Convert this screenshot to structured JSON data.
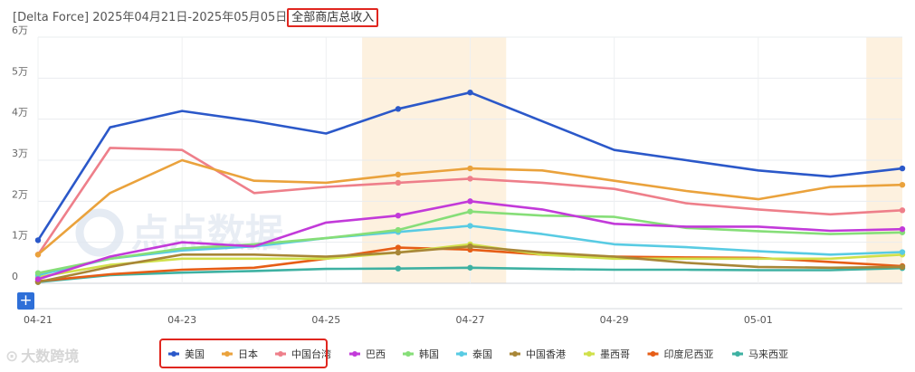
{
  "header": {
    "title_prefix": "[Delta Force] 2025年04月21日-2025年05月05日",
    "title_highlight": "全部商店总收入"
  },
  "toolbar": {
    "expand_icon": "plus-icon"
  },
  "watermark": {
    "text": "点点数据"
  },
  "corner_logo": {
    "text": "大数跨境"
  },
  "colors": {
    "highlight_band": "#fdf1df",
    "annotation_border": "#e0261f"
  },
  "chart_data": {
    "type": "line",
    "title": "全部商店总收入",
    "x": [
      "04-21",
      "04-22",
      "04-23",
      "04-24",
      "04-25",
      "04-26",
      "04-27",
      "04-28",
      "04-29",
      "04-30",
      "05-01",
      "05-02",
      "05-03"
    ],
    "x_tick_labels": [
      "04-21",
      "04-23",
      "04-25",
      "04-27",
      "04-29",
      "05-01"
    ],
    "ylim": [
      0,
      60000
    ],
    "y_ticks": [
      0,
      10000,
      20000,
      30000,
      40000,
      50000,
      60000
    ],
    "y_tick_labels": [
      "0",
      "1万",
      "2万",
      "3万",
      "4万",
      "5万",
      "6万"
    ],
    "grid": "horizontal",
    "legend_position": "bottom",
    "highlighted_ranges": [
      [
        "04-26",
        "04-27"
      ],
      [
        "05-03",
        "05-03"
      ]
    ],
    "series": [
      {
        "name": "美国",
        "color": "#2b58c9",
        "values": [
          10500,
          38000,
          42000,
          39500,
          36500,
          42500,
          46500,
          39500,
          32500,
          30000,
          27500,
          26000,
          28000
        ]
      },
      {
        "name": "日本",
        "color": "#eaa23c",
        "values": [
          7000,
          22000,
          30000,
          25000,
          24500,
          26500,
          28000,
          27500,
          25000,
          22500,
          20500,
          23500,
          24000
        ]
      },
      {
        "name": "中国台湾",
        "color": "#ee7f8a",
        "values": [
          7000,
          33000,
          32500,
          22000,
          23500,
          24500,
          25500,
          24500,
          23000,
          19500,
          18000,
          16800,
          17800
        ]
      },
      {
        "name": "巴西",
        "color": "#c23ad9",
        "values": [
          1000,
          6500,
          10000,
          9000,
          14800,
          16500,
          20000,
          18000,
          14500,
          13800,
          13800,
          12800,
          13200
        ]
      },
      {
        "name": "韩国",
        "color": "#86de78",
        "values": [
          2500,
          6000,
          8500,
          9500,
          11000,
          13000,
          17500,
          16500,
          16200,
          13500,
          12700,
          12000,
          12400
        ]
      },
      {
        "name": "泰国",
        "color": "#58cbe3",
        "values": [
          2000,
          6000,
          8000,
          9000,
          11000,
          12500,
          14000,
          12000,
          9500,
          8800,
          7800,
          7000,
          7600
        ]
      },
      {
        "name": "中国香港",
        "color": "#a88637",
        "values": [
          300,
          4000,
          7000,
          7000,
          6500,
          7500,
          9000,
          7500,
          6500,
          5000,
          4000,
          3800,
          4000
        ]
      },
      {
        "name": "墨西哥",
        "color": "#d0e04a",
        "values": [
          1500,
          4500,
          6000,
          6000,
          6000,
          7500,
          9500,
          7000,
          6000,
          6000,
          6000,
          6000,
          7000
        ]
      },
      {
        "name": "印度尼西亚",
        "color": "#e65d16",
        "values": [
          500,
          2200,
          3300,
          3800,
          6000,
          8700,
          8200,
          7000,
          6500,
          6300,
          6200,
          5200,
          4200
        ]
      },
      {
        "name": "马来西亚",
        "color": "#3eb1a2",
        "values": [
          300,
          2000,
          2600,
          3000,
          3500,
          3600,
          3800,
          3500,
          3300,
          3300,
          3200,
          3200,
          3700
        ]
      }
    ]
  }
}
